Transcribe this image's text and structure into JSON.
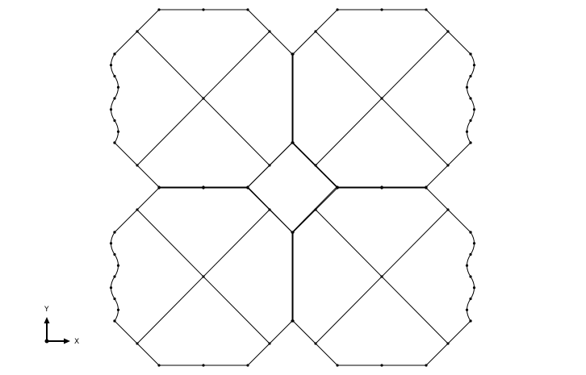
{
  "viewport": {
    "background": "#ffffff",
    "line_color": "#000000"
  },
  "triad": {
    "x_label": "X",
    "y_label": "Y"
  }
}
